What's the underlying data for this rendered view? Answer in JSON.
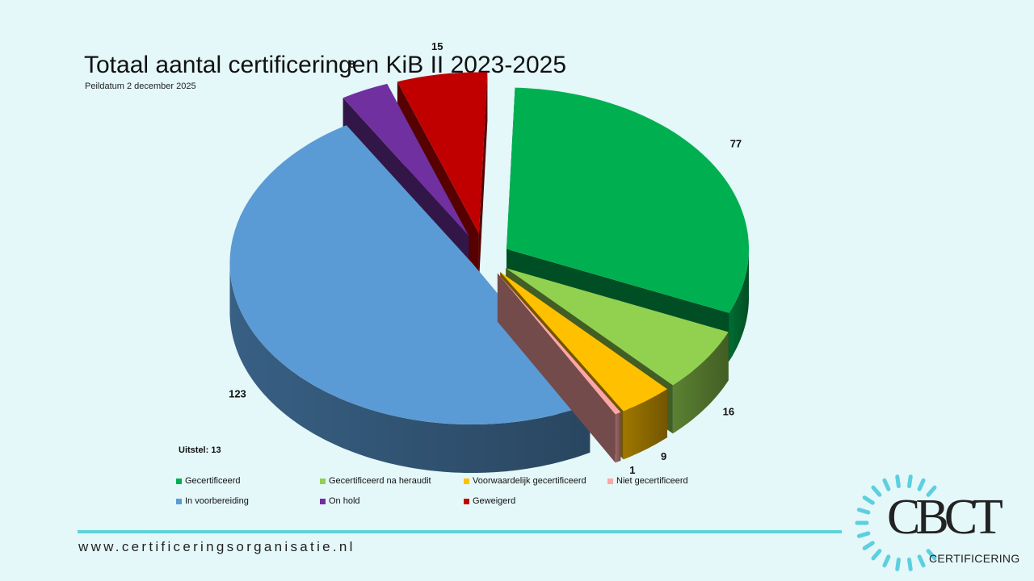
{
  "slide": {
    "title": "Totaal aantal certificeringen KiB II 2023-2025",
    "subtitle": "Peildatum 2 december 2025",
    "note": "Uitstel: 13",
    "footer_url": "www.certificeringsorganisatie.nl"
  },
  "logo": {
    "mark": "CBCT",
    "label": "CERTIFICERING",
    "icon": "sunburst-ring-icon",
    "ray_color": "#5ccfe0"
  },
  "chart_data": {
    "type": "pie",
    "style": "3d-exploded",
    "title": "",
    "legend_position": "bottom",
    "series": [
      {
        "name": "Gecertificeerd",
        "value": 77,
        "color": "#00b050"
      },
      {
        "name": "Gecertificeerd na heraudit",
        "value": 16,
        "color": "#92d050"
      },
      {
        "name": "Voorwaardelijk gecertificeerd",
        "value": 9,
        "color": "#ffc000"
      },
      {
        "name": "Niet gecertificeerd",
        "value": 1,
        "color": "#ffa7a7"
      },
      {
        "name": "In voorbereiding",
        "value": 123,
        "color": "#5b9bd5"
      },
      {
        "name": "On hold",
        "value": 8,
        "color": "#7030a0"
      },
      {
        "name": "Geweigerd",
        "value": 15,
        "color": "#c00000"
      }
    ]
  }
}
